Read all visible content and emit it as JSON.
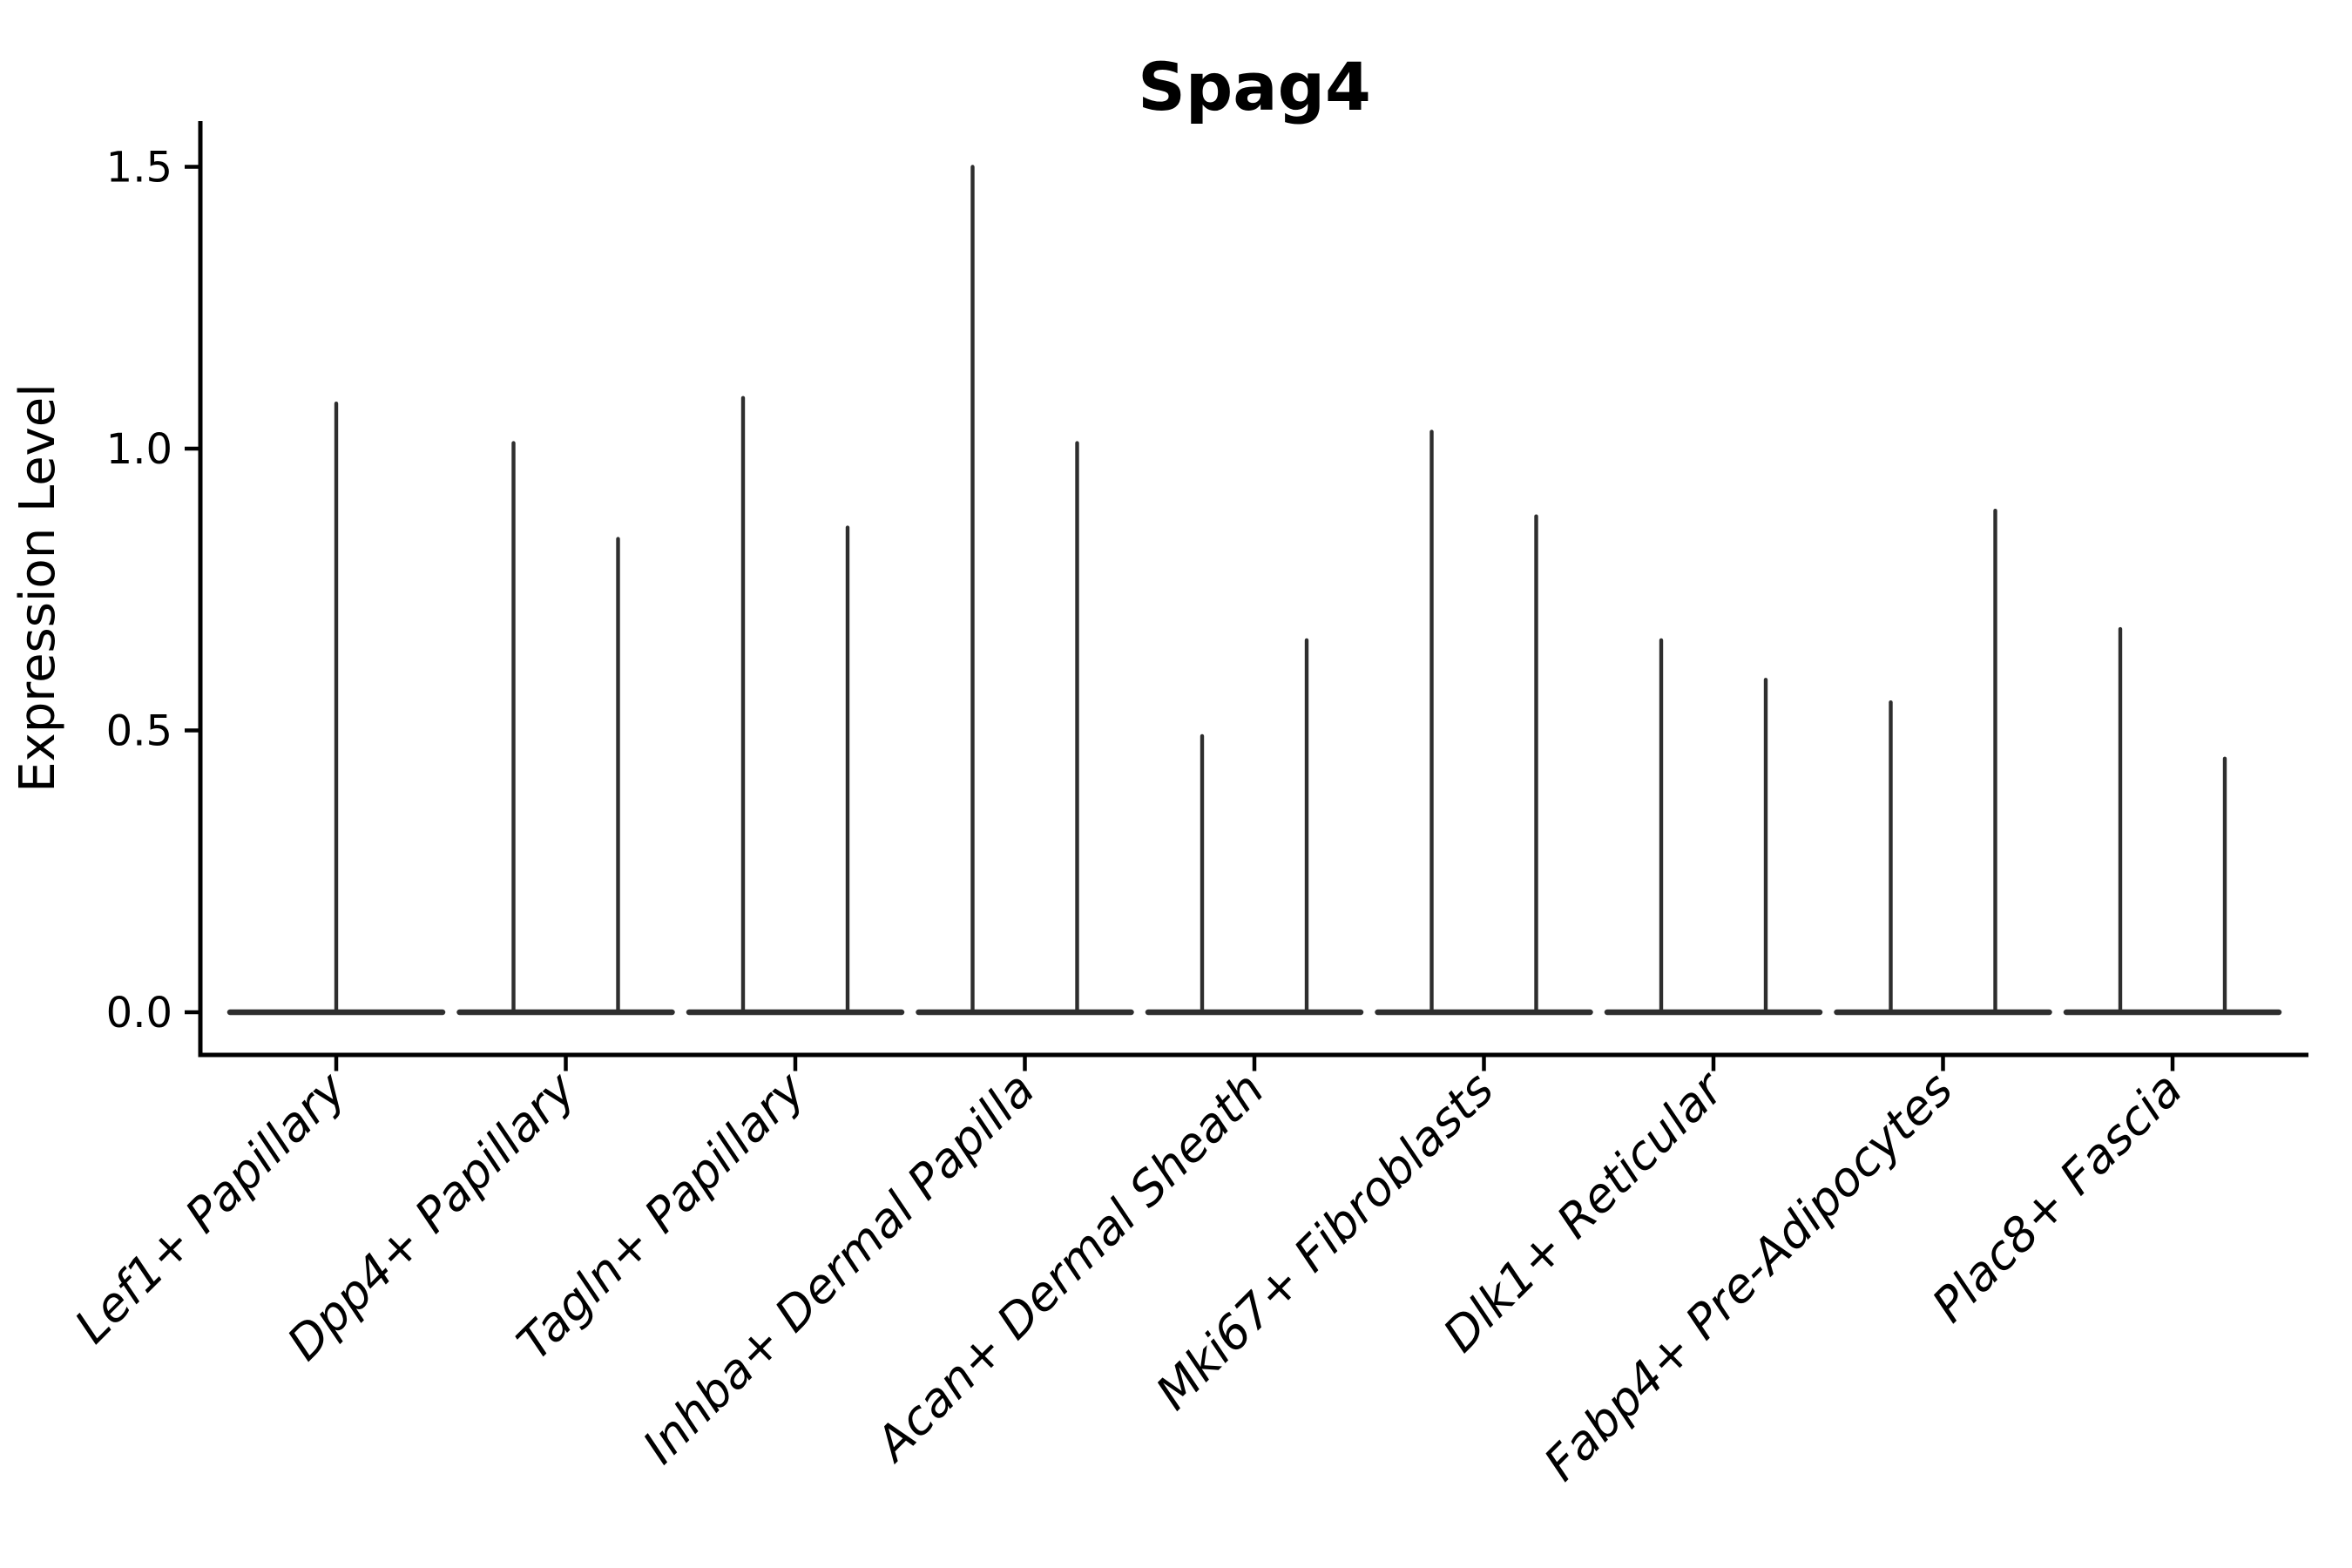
{
  "figure": {
    "background_color": "#ffffff"
  },
  "chart_data": {
    "type": "violin",
    "title": "Spag4",
    "xlabel": "",
    "ylabel": "Expression Level",
    "ytick_labels": [
      "0.0",
      "0.5",
      "1.0",
      "1.5"
    ],
    "ytick_values": [
      0.0,
      0.5,
      1.0,
      1.5
    ],
    "ylim": [
      -0.076,
      1.58
    ],
    "grid": "off",
    "legend": "none",
    "baseline_value": 0.0,
    "axis_color": "#000000",
    "violin_color": "#2e2e2e",
    "categories": [
      "Lef1+ Papillary",
      "Dpp4+ Papillary",
      "Tagln+ Papillary",
      "Inhba+ Dermal Papilla",
      "Acan+ Dermal Sheath",
      "Mki67+ Fibroblasts",
      "Dlk1+ Reticular",
      "Fabp4+ Pre-Adipocytes",
      "Plac8+ Fascia"
    ],
    "groups": [
      {
        "category": "Lef1+ Papillary",
        "violin_maxima": [
          1.08
        ]
      },
      {
        "category": "Dpp4+ Papillary",
        "violin_maxima": [
          1.01,
          0.84
        ]
      },
      {
        "category": "Tagln+ Papillary",
        "violin_maxima": [
          1.09,
          0.86
        ]
      },
      {
        "category": "Inhba+ Dermal Papilla",
        "violin_maxima": [
          1.5,
          1.01
        ]
      },
      {
        "category": "Acan+ Dermal Sheath",
        "violin_maxima": [
          0.49,
          0.66
        ]
      },
      {
        "category": "Mki67+ Fibroblasts",
        "violin_maxima": [
          1.03,
          0.88
        ]
      },
      {
        "category": "Dlk1+ Reticular",
        "violin_maxima": [
          0.66,
          0.59
        ]
      },
      {
        "category": "Fabp4+ Pre-Adipocytes",
        "violin_maxima": [
          0.55,
          0.89
        ]
      },
      {
        "category": "Plac8+ Fascia",
        "violin_maxima": [
          0.68,
          0.45
        ]
      }
    ]
  }
}
